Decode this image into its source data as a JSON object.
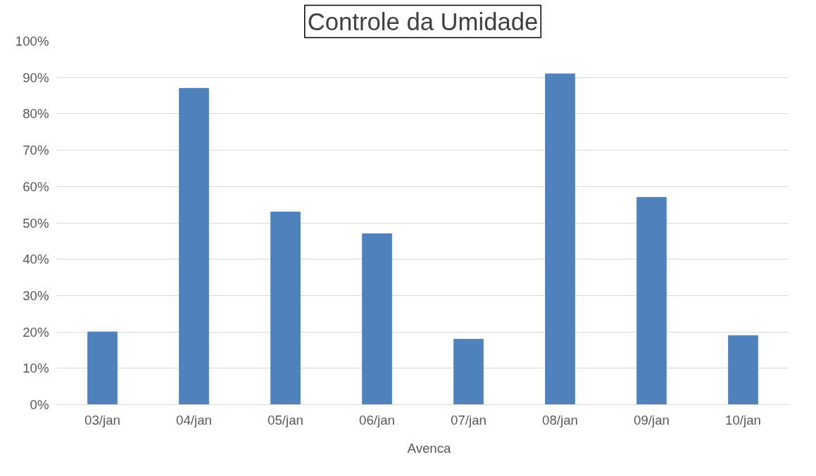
{
  "chart_data": {
    "type": "bar",
    "title": "Controle da Umidade",
    "categories": [
      "03/jan",
      "04/jan",
      "05/jan",
      "06/jan",
      "07/jan",
      "08/jan",
      "09/jan",
      "10/jan"
    ],
    "series": [
      {
        "name": "Avenca",
        "color": "#4f81bd",
        "values": [
          20,
          87,
          53,
          47,
          18,
          91,
          57,
          19
        ]
      }
    ],
    "ylim": [
      0,
      100
    ],
    "yticks": [
      {
        "value": 0,
        "label": "0%"
      },
      {
        "value": 10,
        "label": "10%"
      },
      {
        "value": 20,
        "label": "20%"
      },
      {
        "value": 30,
        "label": "30%"
      },
      {
        "value": 40,
        "label": "40%"
      },
      {
        "value": 50,
        "label": "50%"
      },
      {
        "value": 60,
        "label": "60%"
      },
      {
        "value": 70,
        "label": "70%"
      },
      {
        "value": 80,
        "label": "80%"
      },
      {
        "value": 90,
        "label": "90%"
      },
      {
        "value": 100,
        "label": "100%"
      }
    ],
    "grid": "y",
    "legend": "bottom"
  }
}
